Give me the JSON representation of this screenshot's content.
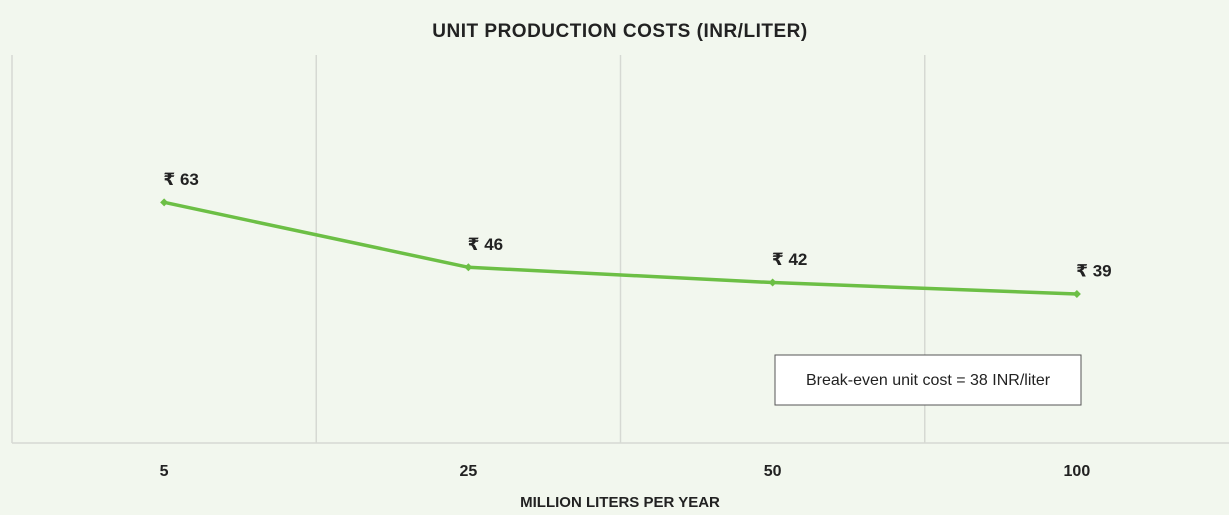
{
  "chart_data": {
    "type": "line",
    "title": "UNIT PRODUCTION COSTS (INR/LITER)",
    "x_label": "MILLION LITERS PER YEAR",
    "categories": [
      "5",
      "25",
      "50",
      "100"
    ],
    "values": [
      63,
      46,
      42,
      39
    ],
    "value_labels": [
      "₹ 63",
      "₹ 46",
      "₹ 42",
      "₹ 39"
    ],
    "color": "#6cbf45",
    "ylim": [
      0,
      100
    ],
    "annotation": "Break-even unit cost = 38 INR/liter"
  }
}
